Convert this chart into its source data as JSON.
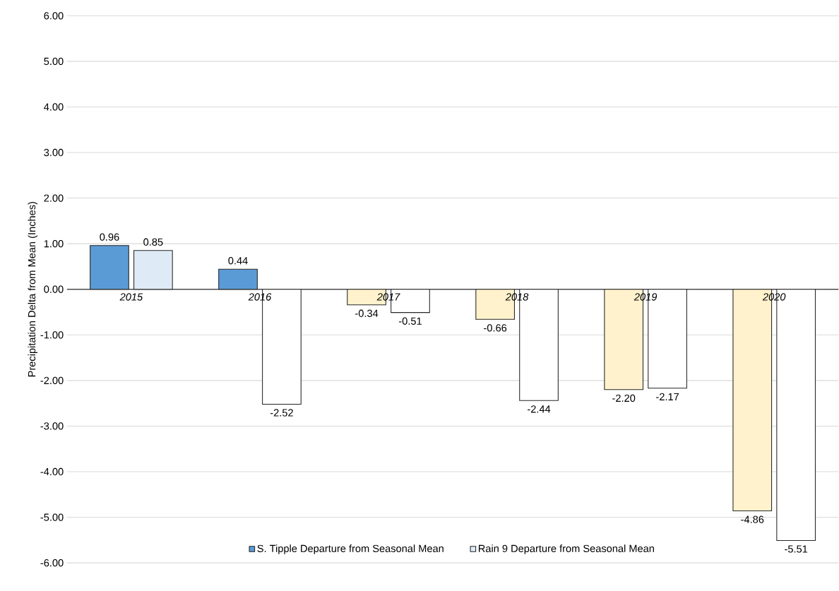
{
  "chart_data": {
    "type": "bar",
    "ylabel": "Precipitation Delta from Mean (Inches)",
    "categories": [
      "2015",
      "2016",
      "2017",
      "2018",
      "2019",
      "2020"
    ],
    "series": [
      {
        "name": "S. Tipple Departure from Seasonal Mean",
        "color": "#5b9bd5",
        "colors": [
          "#5b9bd5",
          "#5b9bd5",
          "#fff2cc",
          "#fff2cc",
          "#fff2cc",
          "#fff2cc"
        ],
        "values": [
          0.96,
          0.44,
          -0.34,
          -0.66,
          -2.2,
          -4.86
        ],
        "value_labels": [
          "0.96",
          "0.44",
          "-0.34",
          "-0.66",
          "-2.20",
          "-4.86"
        ]
      },
      {
        "name": "Rain 9 Departure from Seasonal Mean",
        "color": "#deebf7",
        "colors": [
          "#deebf7",
          "#ffffff",
          "#ffffff",
          "#ffffff",
          "#ffffff",
          "#ffffff"
        ],
        "values": [
          0.85,
          -2.52,
          -0.51,
          -2.44,
          -2.17,
          -5.51
        ],
        "value_labels": [
          "0.85",
          "-2.52",
          "-0.51",
          "-2.44",
          "-2.17",
          "-5.51"
        ]
      }
    ],
    "ylim": [
      -6,
      6
    ],
    "yticks": [
      {
        "value": -6,
        "label": "-6.00"
      },
      {
        "value": -5,
        "label": "-5.00"
      },
      {
        "value": -4,
        "label": "-4.00"
      },
      {
        "value": -3,
        "label": "-3.00"
      },
      {
        "value": -2,
        "label": "-2.00"
      },
      {
        "value": -1,
        "label": "-1.00"
      },
      {
        "value": 0,
        "label": "0.00"
      },
      {
        "value": 1,
        "label": "1.00"
      },
      {
        "value": 2,
        "label": "2.00"
      },
      {
        "value": 3,
        "label": "3.00"
      },
      {
        "value": 4,
        "label": "4.00"
      },
      {
        "value": 5,
        "label": "5.00"
      },
      {
        "value": 6,
        "label": "6.00"
      }
    ],
    "grid": "y",
    "legend": "bottom"
  }
}
